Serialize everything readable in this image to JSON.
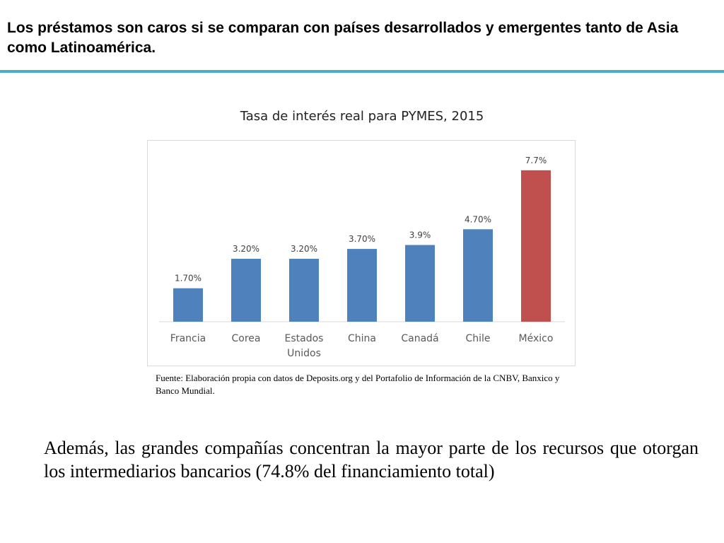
{
  "slide": {
    "headline": "Los préstamos son caros si se comparan con países desarrollados y emergentes tanto de Asia como Latinoamérica.",
    "source_note": "Fuente: Elaboración propia con datos de  Deposits.org y del Portafolio de Información de la CNBV, Banxico y Banco Mundial.",
    "body_text": "Además, las grandes compañías concentran la mayor parte de los recursos que otorgan los intermediarios bancarios (74.8% del financiamiento total)"
  },
  "colors": {
    "rule": "#4bacc6",
    "bar_default": "#4f81bd",
    "bar_highlight": "#c0504d"
  },
  "chart_data": {
    "type": "bar",
    "title": "Tasa de interés real para PYMES, 2015",
    "categories": [
      [
        "Francia"
      ],
      [
        "Corea"
      ],
      [
        "Estados",
        "Unidos"
      ],
      [
        "China"
      ],
      [
        "Canadá"
      ],
      [
        "Chile"
      ],
      [
        "México"
      ]
    ],
    "values": [
      1.7,
      3.2,
      3.2,
      3.7,
      3.9,
      4.7,
      7.7
    ],
    "data_labels": [
      "1.70%",
      "3.20%",
      "3.20%",
      "3.70%",
      "3.9%",
      "4.70%",
      "7.7%"
    ],
    "highlight_index": 6,
    "ylim": [
      0,
      8.7
    ],
    "grid": false,
    "legend": "none"
  }
}
